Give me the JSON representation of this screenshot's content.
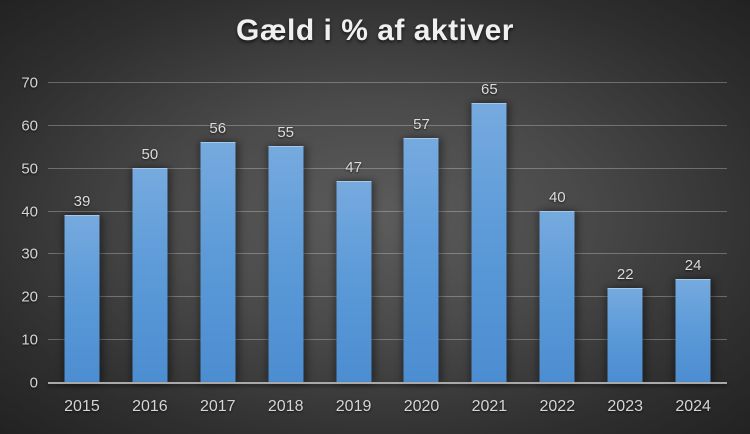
{
  "chart_data": {
    "type": "bar",
    "title": "Gæld i % af aktiver",
    "categories": [
      "2015",
      "2016",
      "2017",
      "2018",
      "2019",
      "2020",
      "2021",
      "2022",
      "2023",
      "2024"
    ],
    "values": [
      39,
      50,
      56,
      55,
      47,
      57,
      65,
      40,
      22,
      24
    ],
    "xlabel": "",
    "ylabel": "",
    "ylim": [
      0,
      70
    ],
    "yticks": [
      0,
      10,
      20,
      30,
      40,
      50,
      60,
      70
    ],
    "grid": true,
    "legend": false,
    "data_labels": true,
    "colors": {
      "bar_top": "#76aadf",
      "bar_bottom": "#4c8dd1",
      "background_center": "#5c5c5c",
      "background_edge": "#222222",
      "gridline": "rgba(255,255,255,0.27)",
      "axis_line": "#a9a9a9",
      "label_text": "#d6d6d6",
      "title_text": "#f0f0f0"
    }
  }
}
